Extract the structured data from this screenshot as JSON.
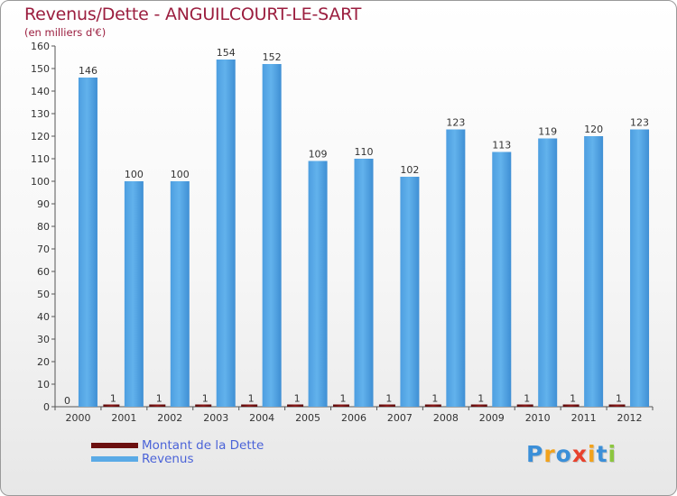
{
  "chart_data": {
    "type": "bar",
    "title": "Revenus/Dette - ANGUILCOURT-LE-SART",
    "subtitle": "(en milliers d'€)",
    "categories": [
      "2000",
      "2001",
      "2002",
      "2003",
      "2004",
      "2005",
      "2006",
      "2007",
      "2008",
      "2009",
      "2010",
      "2011",
      "2012"
    ],
    "series": [
      {
        "name": "Montant de la Dette",
        "color": "#6b0f0f",
        "values": [
          0,
          1,
          1,
          1,
          1,
          1,
          1,
          1,
          1,
          1,
          1,
          1,
          1
        ]
      },
      {
        "name": "Revenus",
        "color": "#5aaae6",
        "values": [
          146,
          100,
          100,
          154,
          152,
          109,
          110,
          102,
          123,
          113,
          119,
          120,
          123
        ]
      }
    ],
    "ylim": [
      0,
      160
    ],
    "yticks": [
      0,
      10,
      20,
      30,
      40,
      50,
      60,
      70,
      80,
      90,
      100,
      110,
      120,
      130,
      140,
      150,
      160
    ],
    "grid": false,
    "legend_position": "bottom-left"
  },
  "logo": {
    "text": "Proxiti",
    "letter_colors": [
      "#3b8fd8",
      "#f2a21b",
      "#3b8fd8",
      "#e8412c",
      "#f2a21b",
      "#3b8fd8",
      "#8cc63f"
    ]
  }
}
